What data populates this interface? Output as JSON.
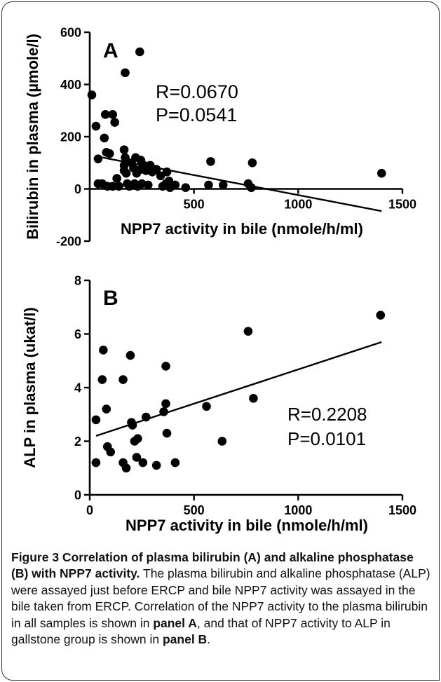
{
  "chart_data": [
    {
      "type": "scatter",
      "panel_label": "A",
      "ylabel": "Bilirubin in plasma (µmole/l)",
      "xlabel": "NPP7 activity in bile (nmole/h/ml)",
      "xlim": [
        0,
        1500
      ],
      "ylim": [
        -200,
        600
      ],
      "xticks": [
        "500",
        "1000",
        "1500"
      ],
      "yticks": [
        "-200",
        "0",
        "200",
        "400",
        "600"
      ],
      "annotations": [
        "R=0.0670",
        "P=0.0541"
      ],
      "points": [
        {
          "x": 10,
          "y": 360
        },
        {
          "x": 30,
          "y": 240
        },
        {
          "x": 40,
          "y": 115
        },
        {
          "x": 40,
          "y": 20
        },
        {
          "x": 75,
          "y": 285
        },
        {
          "x": 70,
          "y": 195
        },
        {
          "x": 80,
          "y": 140
        },
        {
          "x": 95,
          "y": 135
        },
        {
          "x": 110,
          "y": 285
        },
        {
          "x": 110,
          "y": 10
        },
        {
          "x": 120,
          "y": 255
        },
        {
          "x": 130,
          "y": 40
        },
        {
          "x": 85,
          "y": 10
        },
        {
          "x": 60,
          "y": 20
        },
        {
          "x": 140,
          "y": 10
        },
        {
          "x": 170,
          "y": 445
        },
        {
          "x": 165,
          "y": 150
        },
        {
          "x": 170,
          "y": 120
        },
        {
          "x": 165,
          "y": 90
        },
        {
          "x": 165,
          "y": 70
        },
        {
          "x": 175,
          "y": 60
        },
        {
          "x": 180,
          "y": 20
        },
        {
          "x": 190,
          "y": 10
        },
        {
          "x": 200,
          "y": 100
        },
        {
          "x": 210,
          "y": 80
        },
        {
          "x": 215,
          "y": 20
        },
        {
          "x": 220,
          "y": 120
        },
        {
          "x": 225,
          "y": 60
        },
        {
          "x": 230,
          "y": 10
        },
        {
          "x": 240,
          "y": 525
        },
        {
          "x": 245,
          "y": 110
        },
        {
          "x": 245,
          "y": 75
        },
        {
          "x": 250,
          "y": 20
        },
        {
          "x": 260,
          "y": 90
        },
        {
          "x": 270,
          "y": 70
        },
        {
          "x": 280,
          "y": 15
        },
        {
          "x": 290,
          "y": 90
        },
        {
          "x": 300,
          "y": 65
        },
        {
          "x": 320,
          "y": 75
        },
        {
          "x": 340,
          "y": 50
        },
        {
          "x": 350,
          "y": 10
        },
        {
          "x": 365,
          "y": 20
        },
        {
          "x": 370,
          "y": 65
        },
        {
          "x": 380,
          "y": 30
        },
        {
          "x": 385,
          "y": 5
        },
        {
          "x": 410,
          "y": 15
        },
        {
          "x": 460,
          "y": 5
        },
        {
          "x": 580,
          "y": 105
        },
        {
          "x": 570,
          "y": 15
        },
        {
          "x": 640,
          "y": 15
        },
        {
          "x": 760,
          "y": 20
        },
        {
          "x": 780,
          "y": 100
        },
        {
          "x": 775,
          "y": 5
        },
        {
          "x": 1400,
          "y": 60
        }
      ],
      "fit_line": {
        "x": [
          30,
          1400
        ],
        "y": [
          125,
          -85
        ]
      }
    },
    {
      "type": "scatter",
      "panel_label": "B",
      "ylabel": "ALP in plasma (ukat/l)",
      "xlabel": "NPP7 activity in bile (nmole/h/ml)",
      "xlim": [
        0,
        1500
      ],
      "ylim": [
        0,
        8
      ],
      "xticks": [
        "0",
        "500",
        "1000",
        "1500"
      ],
      "yticks": [
        "0",
        "2",
        "4",
        "6",
        "8"
      ],
      "annotations": [
        "R=0.2208",
        "P=0.0101"
      ],
      "points": [
        {
          "x": 30,
          "y": 1.2
        },
        {
          "x": 30,
          "y": 2.8
        },
        {
          "x": 60,
          "y": 4.3
        },
        {
          "x": 65,
          "y": 5.4
        },
        {
          "x": 80,
          "y": 3.2
        },
        {
          "x": 85,
          "y": 1.8
        },
        {
          "x": 100,
          "y": 1.6
        },
        {
          "x": 160,
          "y": 1.2
        },
        {
          "x": 160,
          "y": 4.3
        },
        {
          "x": 175,
          "y": 1.0
        },
        {
          "x": 195,
          "y": 5.2
        },
        {
          "x": 200,
          "y": 2.7
        },
        {
          "x": 205,
          "y": 2.6
        },
        {
          "x": 215,
          "y": 2.0
        },
        {
          "x": 225,
          "y": 1.4
        },
        {
          "x": 230,
          "y": 2.1
        },
        {
          "x": 255,
          "y": 1.2
        },
        {
          "x": 270,
          "y": 2.9
        },
        {
          "x": 320,
          "y": 1.1
        },
        {
          "x": 355,
          "y": 3.1
        },
        {
          "x": 365,
          "y": 3.4
        },
        {
          "x": 365,
          "y": 4.8
        },
        {
          "x": 370,
          "y": 2.3
        },
        {
          "x": 410,
          "y": 1.2
        },
        {
          "x": 560,
          "y": 3.3
        },
        {
          "x": 635,
          "y": 2.0
        },
        {
          "x": 760,
          "y": 6.1
        },
        {
          "x": 785,
          "y": 3.6
        },
        {
          "x": 1395,
          "y": 6.7
        }
      ],
      "fit_line": {
        "x": [
          30,
          1400
        ],
        "y": [
          2.2,
          5.7
        ]
      }
    }
  ],
  "caption": {
    "title": "Figure 3 Correlation of plasma bilirubin (A) and alkaline phosphatase (B) with NPP7 activity.",
    "body_1": " The plasma bilirubin and alkaline phosphatase (ALP) were assayed just before ERCP and bile NPP7 activity was assayed in the bile taken from ERCP. Correlation of the NPP7 activity to the plasma bilirubin in all samples is shown in ",
    "panel_a": "panel A",
    "body_2": ", and that of NPP7 activity to ALP in gallstone group is shown in ",
    "panel_b": "panel B",
    "end": "."
  }
}
